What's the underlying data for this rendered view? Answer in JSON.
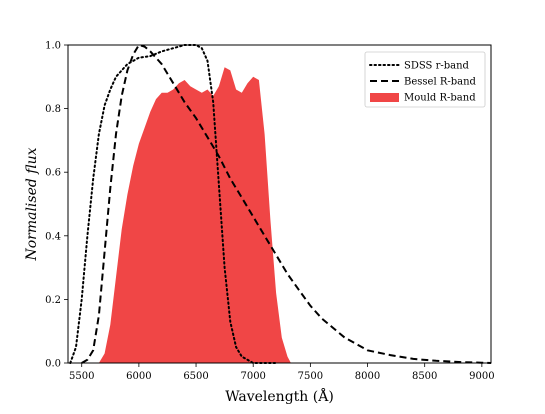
{
  "chart_data": {
    "type": "line",
    "title": "",
    "xlabel": "Wavelength (Å)",
    "ylabel": "Normalised flux",
    "xlim": [
      5380,
      9080
    ],
    "ylim": [
      0.0,
      1.0
    ],
    "xticks": [
      5500,
      6000,
      6500,
      7000,
      7500,
      8000,
      8500,
      9000
    ],
    "xtick_labels": [
      "5500",
      "6000",
      "6500",
      "7000",
      "7500",
      "8000",
      "8500",
      "9000"
    ],
    "yticks": [
      0.0,
      0.2,
      0.4,
      0.6,
      0.8,
      1.0
    ],
    "ytick_labels": [
      "0.0",
      "0.2",
      "0.4",
      "0.6",
      "0.8",
      "1.0"
    ],
    "grid": false,
    "legend_position": "top-right",
    "series": [
      {
        "name": "SDSS r-band",
        "style": "dotted",
        "kind": "line",
        "color": "#000000",
        "x": [
          5400,
          5450,
          5500,
          5550,
          5600,
          5650,
          5700,
          5750,
          5800,
          5850,
          5900,
          5950,
          6000,
          6100,
          6200,
          6300,
          6400,
          6500,
          6550,
          6600,
          6650,
          6700,
          6750,
          6800,
          6850,
          6900,
          6950,
          7000,
          7100,
          7200
        ],
        "y": [
          0.0,
          0.05,
          0.2,
          0.4,
          0.58,
          0.72,
          0.81,
          0.86,
          0.9,
          0.92,
          0.94,
          0.95,
          0.96,
          0.965,
          0.98,
          0.99,
          1.0,
          1.0,
          0.99,
          0.95,
          0.82,
          0.56,
          0.3,
          0.13,
          0.05,
          0.02,
          0.01,
          0.0,
          0.0,
          0.0
        ]
      },
      {
        "name": "Bessel R-band",
        "style": "dashed",
        "kind": "line",
        "color": "#000000",
        "x": [
          5500,
          5550,
          5600,
          5650,
          5700,
          5750,
          5800,
          5850,
          5900,
          5950,
          6000,
          6050,
          6100,
          6200,
          6300,
          6400,
          6500,
          6600,
          6700,
          6800,
          6900,
          7000,
          7100,
          7200,
          7300,
          7400,
          7500,
          7600,
          7700,
          7800,
          7900,
          8000,
          8200,
          8400,
          8600,
          8800,
          9000,
          9080
        ],
        "y": [
          0.0,
          0.01,
          0.04,
          0.15,
          0.35,
          0.55,
          0.72,
          0.84,
          0.92,
          0.97,
          1.0,
          0.995,
          0.98,
          0.94,
          0.88,
          0.82,
          0.77,
          0.71,
          0.65,
          0.58,
          0.52,
          0.46,
          0.4,
          0.34,
          0.28,
          0.23,
          0.18,
          0.14,
          0.11,
          0.08,
          0.06,
          0.04,
          0.025,
          0.013,
          0.007,
          0.003,
          0.001,
          0.0
        ]
      },
      {
        "name": "Mould R-band",
        "style": "filled",
        "kind": "area",
        "color": "#f04646",
        "x": [
          5650,
          5700,
          5750,
          5800,
          5850,
          5900,
          5950,
          6000,
          6050,
          6100,
          6150,
          6200,
          6250,
          6300,
          6350,
          6400,
          6450,
          6500,
          6550,
          6600,
          6650,
          6700,
          6750,
          6800,
          6850,
          6900,
          6950,
          7000,
          7050,
          7100,
          7150,
          7200,
          7250,
          7300,
          7330
        ],
        "y": [
          0.0,
          0.03,
          0.12,
          0.27,
          0.42,
          0.53,
          0.62,
          0.69,
          0.74,
          0.79,
          0.83,
          0.85,
          0.85,
          0.86,
          0.88,
          0.89,
          0.87,
          0.86,
          0.85,
          0.86,
          0.84,
          0.87,
          0.93,
          0.92,
          0.86,
          0.85,
          0.88,
          0.9,
          0.89,
          0.72,
          0.45,
          0.22,
          0.08,
          0.02,
          0.0
        ]
      }
    ]
  }
}
